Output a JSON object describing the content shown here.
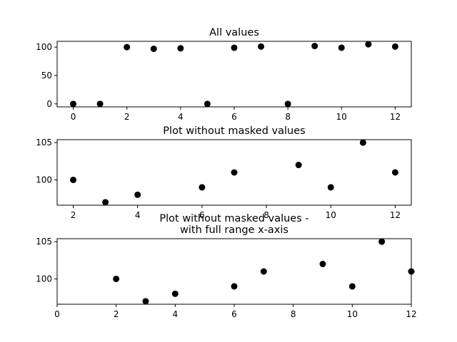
{
  "chart_data": [
    {
      "type": "scatter",
      "title": "All values",
      "x": [
        0,
        1,
        2,
        3,
        4,
        5,
        6,
        7,
        8,
        9,
        10,
        11,
        12
      ],
      "y": [
        0,
        0,
        100,
        97,
        98,
        0,
        99,
        101,
        0,
        102,
        99,
        105,
        101
      ],
      "xlim": [
        -0.6,
        12.6
      ],
      "ylim": [
        -5.25,
        110.25
      ],
      "xticks": [
        "0",
        "2",
        "4",
        "6",
        "8",
        "10",
        "12"
      ],
      "yticks": [
        "0",
        "50",
        "100"
      ],
      "marker_color": "#000000"
    },
    {
      "type": "scatter",
      "title": "Plot without masked values",
      "x": [
        2,
        3,
        4,
        6,
        7,
        9,
        10,
        11,
        12
      ],
      "y": [
        100,
        97,
        98,
        99,
        101,
        102,
        99,
        105,
        101
      ],
      "xlim": [
        1.5,
        12.5
      ],
      "ylim": [
        96.6,
        105.4
      ],
      "xticks": [
        "2",
        "4",
        "6",
        "8",
        "10",
        "12"
      ],
      "yticks": [
        "100",
        "105"
      ],
      "marker_color": "#000000"
    },
    {
      "type": "scatter",
      "title": "Plot without masked values -\nwith full range x-axis",
      "x": [
        2,
        3,
        4,
        6,
        7,
        9,
        10,
        11,
        12
      ],
      "y": [
        100,
        97,
        98,
        99,
        101,
        102,
        99,
        105,
        101
      ],
      "xlim": [
        0,
        12
      ],
      "ylim": [
        96.6,
        105.4
      ],
      "xticks": [
        "0",
        "2",
        "4",
        "6",
        "8",
        "10",
        "12"
      ],
      "yticks": [
        "100",
        "105"
      ],
      "marker_color": "#000000"
    }
  ]
}
